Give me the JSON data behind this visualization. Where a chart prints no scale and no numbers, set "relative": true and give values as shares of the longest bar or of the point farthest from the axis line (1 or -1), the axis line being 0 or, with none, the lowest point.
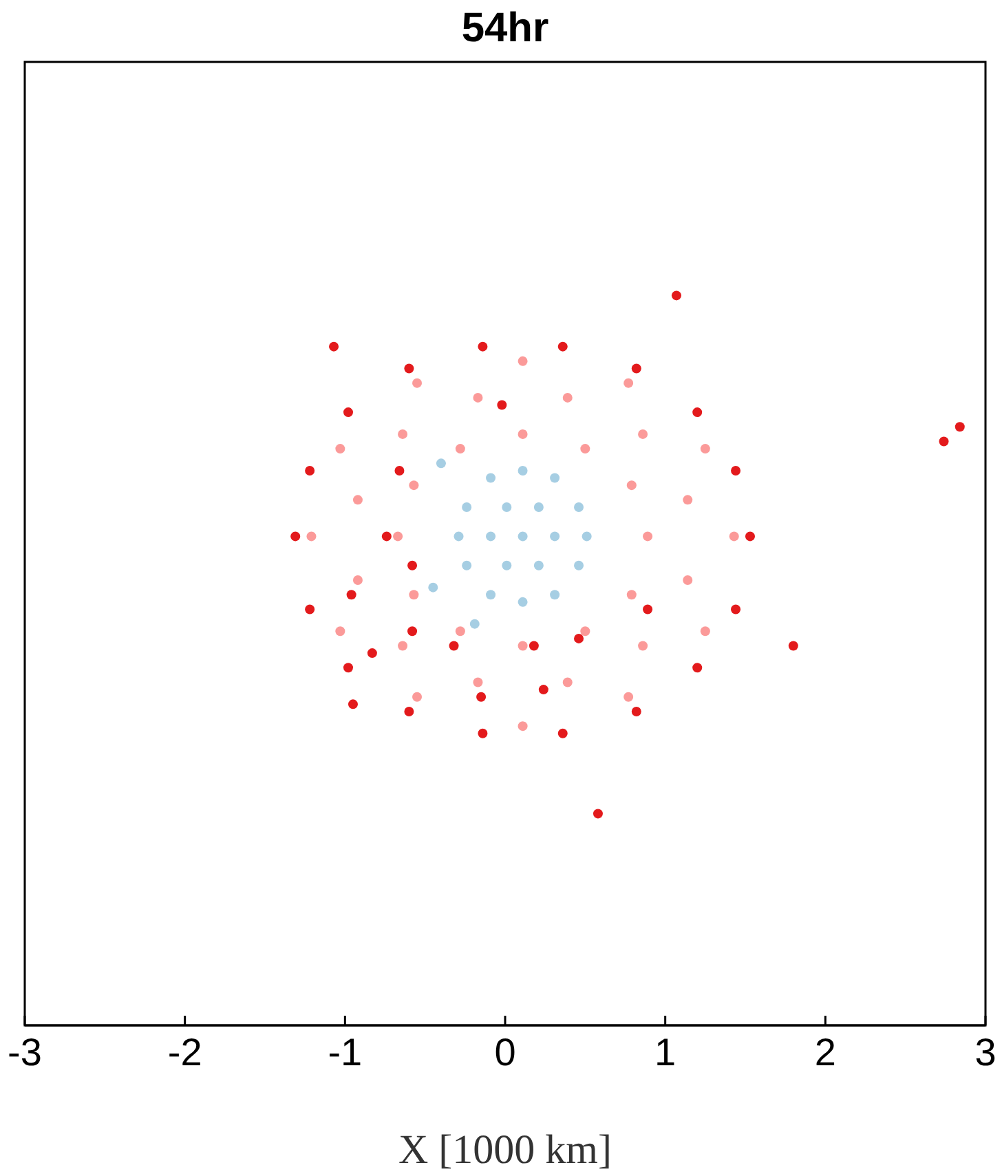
{
  "chart_data": {
    "type": "scatter",
    "title": "54hr",
    "xlabel": "X [1000 km]",
    "xlim": [
      -3,
      3
    ],
    "xticks": [
      -3,
      -2,
      -1,
      0,
      1,
      2,
      3
    ],
    "relative": true,
    "tick_labels": "x",
    "marker": "circle",
    "series": [
      {
        "color": "#fb9a99",
        "x": [
          0.89,
          0.79,
          0.5,
          0.11,
          -0.28,
          -0.57,
          -0.67,
          -0.57,
          -0.28,
          0.11,
          0.5,
          0.79,
          1.14,
          0.86,
          0.39,
          -0.17,
          -0.64,
          -0.92,
          -0.92,
          -0.64,
          -0.17,
          0.39,
          0.86,
          1.14,
          1.43,
          1.25,
          0.77,
          0.11,
          -0.55,
          -1.03,
          -1.21,
          -1.03,
          -0.55,
          0.11,
          0.77,
          1.25
        ],
        "values": [
          0.67,
          0.74,
          0.79,
          0.81,
          0.79,
          0.74,
          0.67,
          0.59,
          0.54,
          0.52,
          0.54,
          0.59,
          0.72,
          0.81,
          0.86,
          0.86,
          0.81,
          0.72,
          0.61,
          0.52,
          0.47,
          0.47,
          0.52,
          0.61,
          0.67,
          0.79,
          0.88,
          0.91,
          0.88,
          0.79,
          0.67,
          0.54,
          0.45,
          0.41,
          0.45,
          0.54
        ]
      },
      {
        "color": "#a6cee3",
        "x": [
          0.11,
          0.31,
          0.21,
          0.01,
          -0.09,
          0.01,
          0.21,
          0.51,
          0.46,
          0.31,
          0.11,
          -0.09,
          -0.24,
          -0.29,
          -0.24,
          -0.09,
          0.11,
          0.31,
          0.46,
          -0.4,
          -0.45,
          -0.19
        ],
        "values": [
          0.67,
          0.67,
          0.71,
          0.71,
          0.67,
          0.63,
          0.63,
          0.67,
          0.71,
          0.75,
          0.76,
          0.75,
          0.71,
          0.67,
          0.63,
          0.59,
          0.58,
          0.59,
          0.63,
          0.77,
          0.6,
          0.55
        ]
      },
      {
        "color": "#e31a1c",
        "x": [
          1.53,
          1.44,
          1.2,
          0.82,
          0.36,
          -0.14,
          -0.6,
          -0.98,
          -1.22,
          -1.31,
          -1.22,
          -0.98,
          -0.6,
          -0.14,
          0.36,
          0.82,
          1.2,
          1.44,
          -0.58,
          -0.32,
          0.18,
          0.46,
          -0.83,
          -0.15,
          0.24,
          -0.74,
          -0.58,
          -0.02,
          0.89,
          -0.96,
          -0.66,
          1.07,
          -1.07,
          2.74,
          2.84,
          1.8,
          0.58,
          -0.95
        ],
        "values": [
          0.67,
          0.76,
          0.84,
          0.9,
          0.93,
          0.93,
          0.9,
          0.84,
          0.76,
          0.67,
          0.57,
          0.49,
          0.43,
          0.4,
          0.4,
          0.43,
          0.49,
          0.57,
          0.54,
          0.52,
          0.52,
          0.53,
          0.51,
          0.45,
          0.46,
          0.67,
          0.63,
          0.85,
          0.57,
          0.59,
          0.76,
          1,
          0.93,
          0.8,
          0.82,
          0.52,
          0.29,
          0.44
        ]
      }
    ]
  }
}
